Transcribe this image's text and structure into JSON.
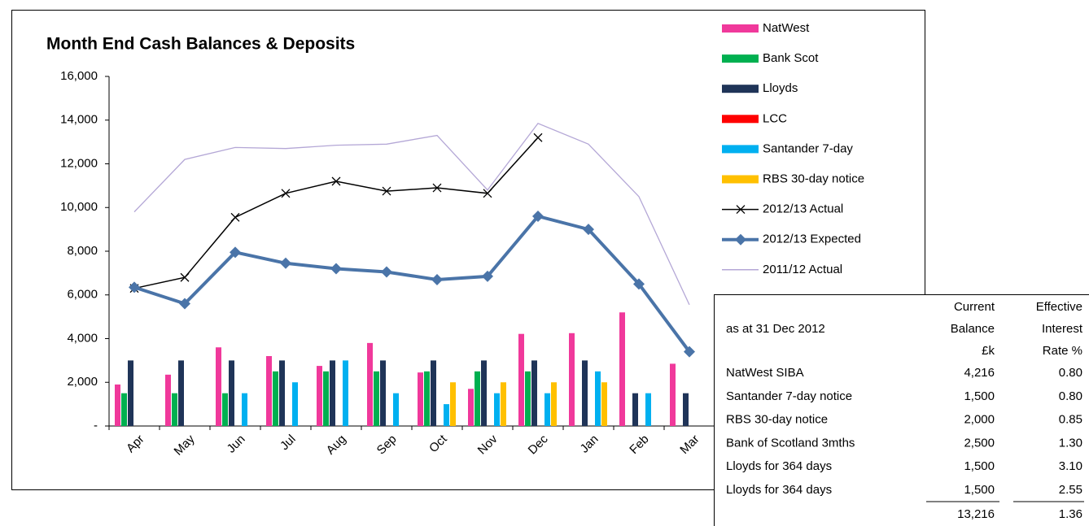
{
  "chart_data": {
    "type": "combo",
    "title": "Month End Cash Balances & Deposits",
    "categories": [
      "Apr",
      "May",
      "Jun",
      "Jul",
      "Aug",
      "Sep",
      "Oct",
      "Nov",
      "Dec",
      "Jan",
      "Feb",
      "Mar"
    ],
    "ylim": [
      0,
      16000
    ],
    "yticks": [
      {
        "value": 0,
        "label": "-"
      },
      {
        "value": 2000,
        "label": "2,000"
      },
      {
        "value": 4000,
        "label": "4,000"
      },
      {
        "value": 6000,
        "label": "6,000"
      },
      {
        "value": 8000,
        "label": "8,000"
      },
      {
        "value": 10000,
        "label": "10,000"
      },
      {
        "value": 12000,
        "label": "12,000"
      },
      {
        "value": 14000,
        "label": "14,000"
      },
      {
        "value": 16000,
        "label": "16,000"
      }
    ],
    "series": [
      {
        "name": "NatWest",
        "type": "bar",
        "color": "#f0399b",
        "values": [
          1900,
          2350,
          3600,
          3200,
          2750,
          3800,
          2450,
          1700,
          4216,
          4250,
          5200,
          2850
        ]
      },
      {
        "name": "Bank Scot",
        "type": "bar",
        "color": "#00b050",
        "values": [
          1500,
          1500,
          1500,
          2500,
          2500,
          2500,
          2500,
          2500,
          2500,
          0,
          0,
          0
        ]
      },
      {
        "name": "Lloyds",
        "type": "bar",
        "color": "#1f3458",
        "values": [
          3000,
          3000,
          3000,
          3000,
          3000,
          3000,
          3000,
          3000,
          3000,
          3000,
          1500,
          1500
        ]
      },
      {
        "name": "LCC",
        "type": "bar",
        "color": "#ff0000",
        "values": [
          0,
          0,
          0,
          0,
          0,
          0,
          0,
          0,
          0,
          0,
          0,
          0
        ]
      },
      {
        "name": "Santander 7-day",
        "type": "bar",
        "color": "#00b0f0",
        "values": [
          0,
          0,
          1500,
          2000,
          3000,
          1500,
          1000,
          1500,
          1500,
          2500,
          1500,
          0
        ]
      },
      {
        "name": "RBS 30-day notice",
        "type": "bar",
        "color": "#ffc000",
        "values": [
          0,
          0,
          0,
          0,
          0,
          0,
          2000,
          2000,
          2000,
          2000,
          0,
          0
        ]
      },
      {
        "name": "2012/13 Actual",
        "type": "line-cross",
        "color": "#000000",
        "values": [
          6300,
          6800,
          9550,
          10650,
          11200,
          10750,
          10900,
          10650,
          13200,
          null,
          null,
          null
        ]
      },
      {
        "name": "2012/13 Expected",
        "type": "line-diamond",
        "color": "#4a74a8",
        "values": [
          6350,
          5600,
          7950,
          7450,
          7200,
          7050,
          6700,
          6850,
          9600,
          9000,
          6500,
          3400
        ]
      },
      {
        "name": "2011/12 Actual",
        "type": "line",
        "color": "#b4a7d6",
        "values": [
          9800,
          12200,
          12750,
          12700,
          12850,
          12900,
          13300,
          10800,
          13850,
          12900,
          10500,
          5550
        ]
      }
    ]
  },
  "table": {
    "caption": "as at 31 Dec 2012",
    "header": [
      [
        "Current",
        "Balance",
        "£k"
      ],
      [
        "Effective",
        "Interest",
        "Rate %"
      ]
    ],
    "rows": [
      [
        "NatWest SIBA",
        "4,216",
        "0.80"
      ],
      [
        "Santander 7-day notice",
        "1,500",
        "0.80"
      ],
      [
        "RBS 30-day notice",
        "2,000",
        "0.85"
      ],
      [
        "Bank of Scotland 3mths",
        "2,500",
        "1.30"
      ],
      [
        "Lloyds for 364 days",
        "1,500",
        "3.10"
      ],
      [
        "Lloyds for 364 days",
        "1,500",
        "2.55"
      ]
    ],
    "total": [
      "13,216",
      "1.36"
    ]
  }
}
